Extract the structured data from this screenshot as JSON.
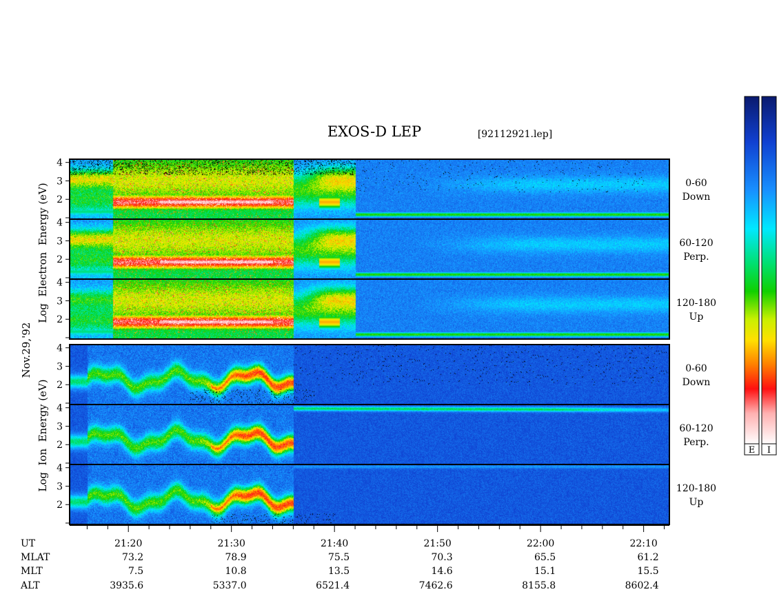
{
  "header": {
    "title": "EXOS-D LEP",
    "file": "[92112921.lep]"
  },
  "side_labels": {
    "electron": "Log  Electron  Energy (eV)",
    "ion": "Log  Ion  Energy (eV)",
    "date": "Nov.29,'92"
  },
  "colorbar": {
    "labels": [
      "E",
      "I"
    ],
    "colors_top_to_bottom": [
      "#0a1a6e",
      "#1040d0",
      "#1890ff",
      "#00e8ff",
      "#00e070",
      "#10d000",
      "#c8f000",
      "#ffe000",
      "#ff8000",
      "#ff1010",
      "#ffb0b0",
      "#ffffff"
    ]
  },
  "chart_data": {
    "type": "heatmap",
    "title": "EXOS-D LEP",
    "x_ticks": [
      "21:20",
      "21:30",
      "21:40",
      "21:50",
      "22:00",
      "22:10"
    ],
    "ylim": [
      1,
      4
    ],
    "y_ticks": [
      "4",
      "3",
      "2"
    ],
    "panels": [
      {
        "species": "Electron",
        "pitch_angle": "0-60",
        "direction": "Down"
      },
      {
        "species": "Electron",
        "pitch_angle": "60-120",
        "direction": "Perp."
      },
      {
        "species": "Electron",
        "pitch_angle": "120-180",
        "direction": "Up"
      },
      {
        "species": "Ion",
        "pitch_angle": "0-60",
        "direction": "Down"
      },
      {
        "species": "Ion",
        "pitch_angle": "60-120",
        "direction": "Perp."
      },
      {
        "species": "Ion",
        "pitch_angle": "120-180",
        "direction": "Up"
      }
    ],
    "ephemeris": {
      "rows": [
        {
          "name": "UT",
          "values": []
        },
        {
          "name": "MLAT",
          "values": [
            "73.2",
            "78.9",
            "75.5",
            "70.3",
            "65.5",
            "61.2"
          ]
        },
        {
          "name": "MLT",
          "values": [
            "7.5",
            "10.8",
            "13.5",
            "14.6",
            "15.1",
            "15.5"
          ]
        },
        {
          "name": "ALT",
          "values": [
            "3935.6",
            "5337.0",
            "6521.4",
            "7462.6",
            "8155.8",
            "8602.4"
          ]
        }
      ]
    }
  }
}
